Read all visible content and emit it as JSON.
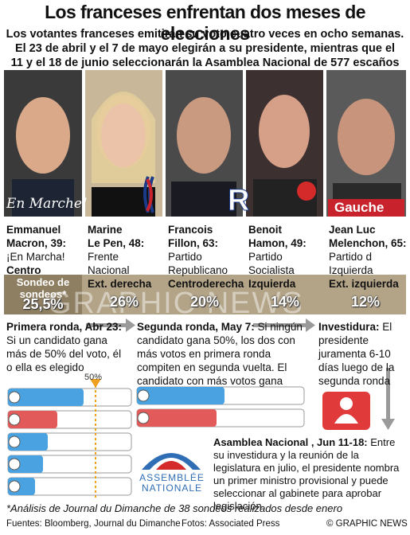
{
  "header": {
    "title": "Los franceses enfrentan dos meses de elecciones",
    "subtitle": [
      "Los votantes franceses emitirán su voto cuatro veces en ocho semanas.",
      "El 23 de abril y el 7 de mayo elegirán a su presidente, mientras que el",
      "11 y el 18 de junio seleccionarán la Asamblea Nacional de 577 escaños"
    ]
  },
  "candidates": [
    {
      "name": [
        "Emmanuel",
        "Macron, 39:"
      ],
      "party": [
        "¡En Marcha!"
      ],
      "leaning": "Centro",
      "poll": "25,5%",
      "logo": "En Marche!"
    },
    {
      "name": [
        "Marine",
        "Le Pen, 48:"
      ],
      "party": [
        "Frente",
        "Nacional"
      ],
      "leaning": "Ext. derecha",
      "poll": "26%"
    },
    {
      "name": [
        "Francois",
        "Fillon, 63:"
      ],
      "party": [
        "Partido",
        "Republicano"
      ],
      "leaning": "Centroderecha",
      "poll": "20%"
    },
    {
      "name": [
        "Benoit",
        "Hamon, 49:"
      ],
      "party": [
        "Partido",
        "Socialista"
      ],
      "leaning": "Izquierda",
      "poll": "14%"
    },
    {
      "name": [
        "Jean Luc",
        "Melenchon, 65:"
      ],
      "party": [
        "Partido d",
        "Izquierda"
      ],
      "leaning": "Ext. izquierda",
      "poll": "12%",
      "logo": "Gauche"
    }
  ],
  "poll_label": "Sondeo de sondeos*",
  "watermark": "GRAPHIC NEWS",
  "steps": [
    {
      "heading": "Primera ronda, Abr 23:",
      "body": "Si un candidato gana más de 50% del voto, él o ella es elegido"
    },
    {
      "heading": "Segunda ronda, May 7:",
      "body": "Si ningún candidato gana 50%, los dos con más votos en primera ronda compiten en segunda vuelta. El candidato con más votos gana"
    },
    {
      "heading": "Investidura:",
      "body": "El presidente juramenta 6-10 días luego de la segunda ronda"
    },
    {
      "heading": "Asamblea Nacional , Jun 11-18:",
      "body": "Entre su investidura y la reunión de la legislatura en julio, el presidente nombra un primer ministro provisional y puede seleccionar al gabinete para aprobar legislación"
    }
  ],
  "threshold_label": "50%",
  "assembly_logo": [
    "ASSEMBLÉE",
    "NATIONALE"
  ],
  "footnote": "*Análisis de Journal du Dimanche de 38 sondeos realizados desde enero",
  "footer": {
    "sources": "Fuentes: Bloomberg, Journal du Dimanche",
    "photos": "Fotos: Associated Press",
    "credit": "© GRAPHIC NEWS"
  }
}
